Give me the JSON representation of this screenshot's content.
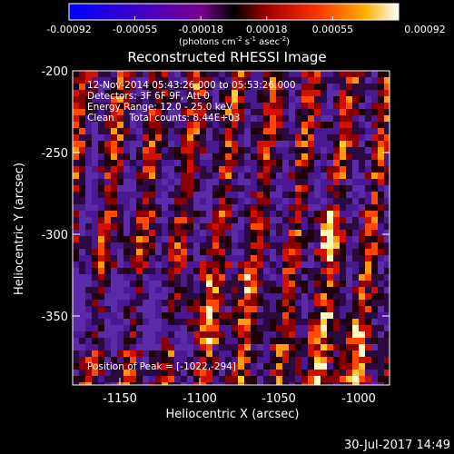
{
  "colorbar": {
    "ticks": [
      "-0.00092",
      "-0.00055",
      "-0.00018",
      "0.00018",
      "0.00055",
      "0.00092"
    ],
    "unit_prefix": "(photons cm",
    "unit_exp1": "-2",
    "unit_mid": " s",
    "unit_exp2": "-1",
    "unit_mid2": " asec",
    "unit_exp3": "-2",
    "unit_suffix": ")"
  },
  "title": "Reconstructed RHESSI Image",
  "info": {
    "time_range": "12-Nov-2014 05:43:26.000 to 05:53:26.000",
    "detectors": "Detectors: 3F 6F 9F, Att 0",
    "energy": "Energy Range: 12.0 - 25.0 keV",
    "clean": "Clean     Total counts: 8.44E+03"
  },
  "peak": "Position of Peak = [-1022,-294]",
  "x_axis": {
    "label": "Heliocentric X (arcsec)",
    "ticks": [
      "-1150",
      "-1100",
      "-1050",
      "-1000"
    ]
  },
  "y_axis": {
    "label": "Heliocentric Y (arcsec)",
    "ticks": [
      "-200",
      "-250",
      "-300",
      "-350"
    ]
  },
  "footer_date": "30-Jul-2017 14:49"
}
